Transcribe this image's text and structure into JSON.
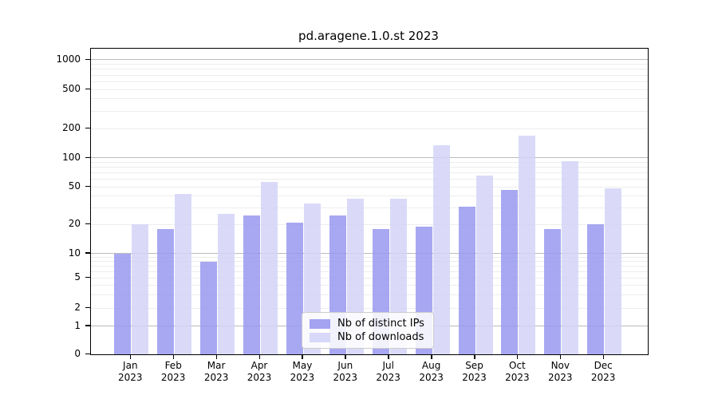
{
  "chart_data": {
    "type": "bar",
    "title": "pd.aragene.1.0.st 2023",
    "year": "2023",
    "categories": [
      "Jan",
      "Feb",
      "Mar",
      "Apr",
      "May",
      "Jun",
      "Jul",
      "Aug",
      "Sep",
      "Oct",
      "Nov",
      "Dec"
    ],
    "series": [
      {
        "name": "Nb of distinct IPs",
        "color": "#9999f0",
        "values": [
          10,
          18,
          8,
          25,
          21,
          25,
          18,
          19,
          31,
          46,
          18,
          20
        ]
      },
      {
        "name": "Nb of downloads",
        "color": "#d4d4f7",
        "values": [
          20,
          42,
          26,
          56,
          33,
          37,
          37,
          135,
          66,
          170,
          92,
          48
        ]
      }
    ],
    "y_ticks": [
      0,
      1,
      2,
      5,
      10,
      20,
      50,
      100,
      200,
      500,
      1000
    ],
    "y_minor_gridlines": [
      3,
      4,
      6,
      7,
      8,
      9,
      30,
      40,
      60,
      70,
      80,
      90,
      300,
      400,
      600,
      700,
      800,
      900
    ],
    "yscale": "symlog",
    "ylim": [
      0,
      1200
    ],
    "grid": true,
    "legend_position": "lower center"
  }
}
